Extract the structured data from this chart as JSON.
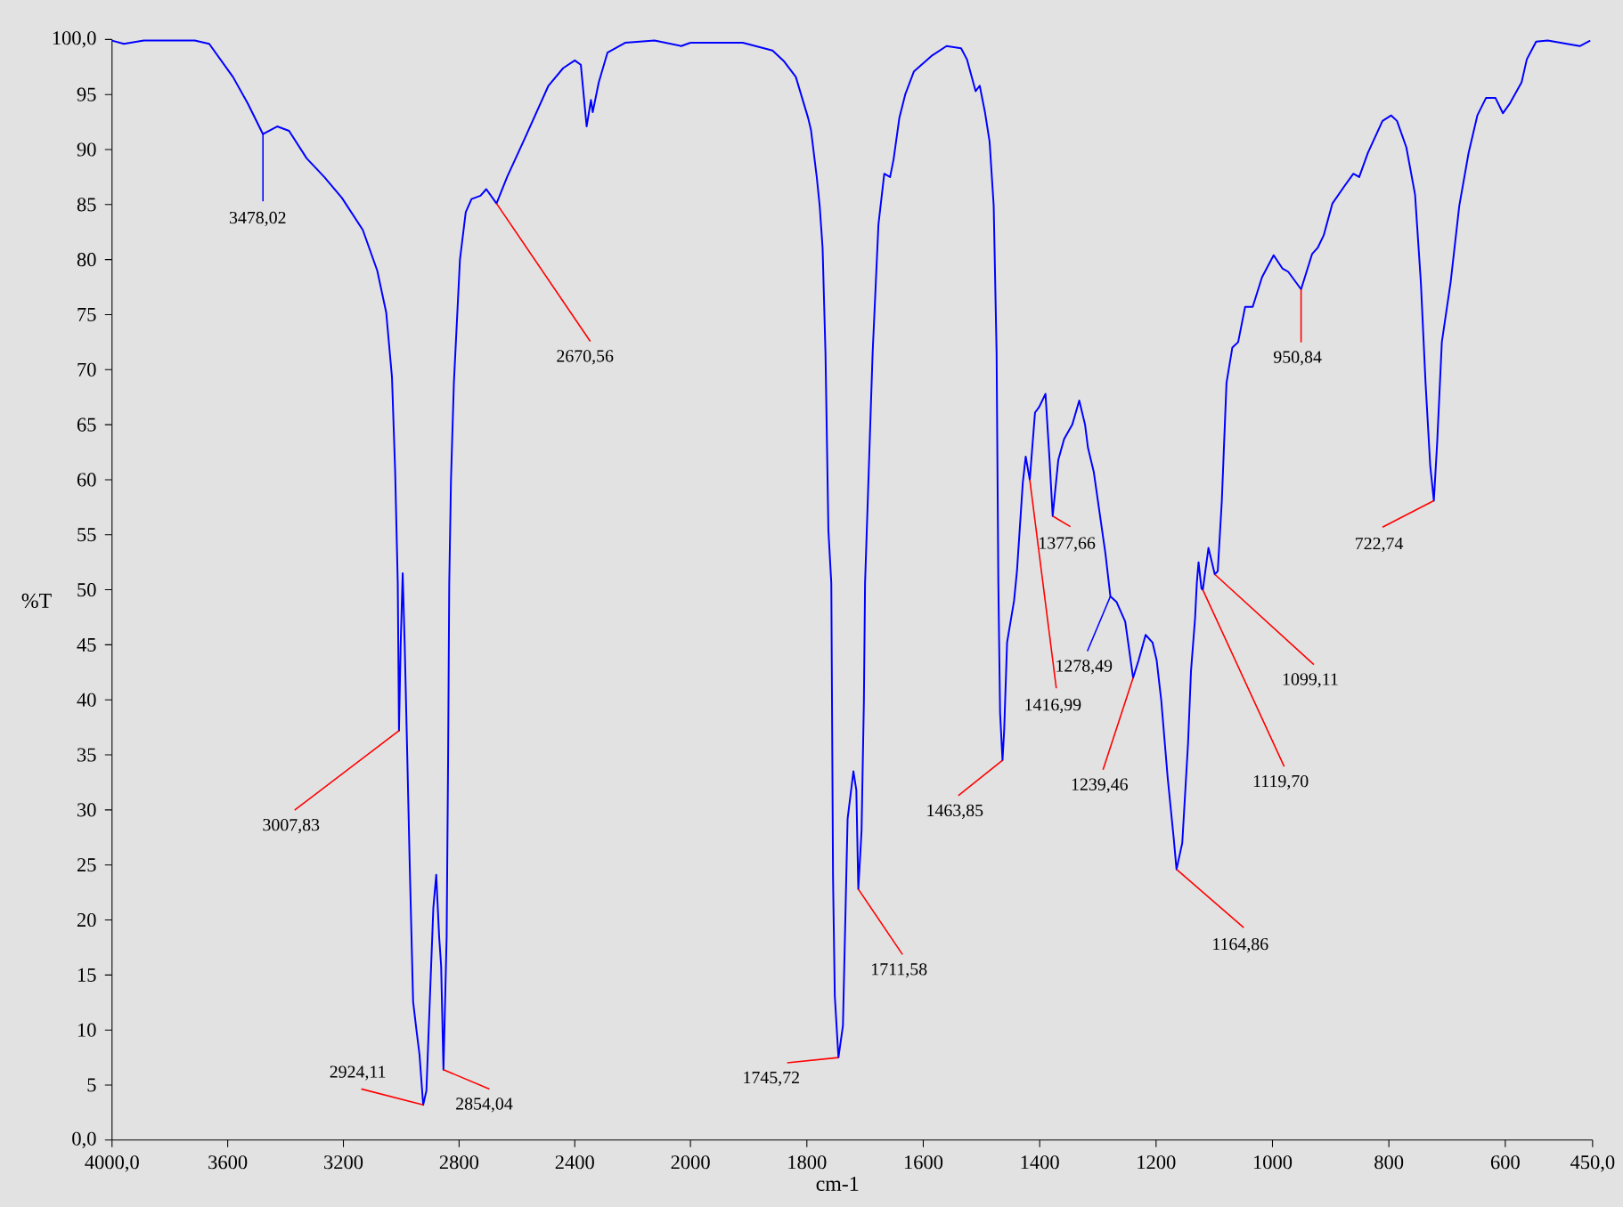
{
  "chart_data": [
    {
      "type": "line",
      "ylabel": "%T",
      "xlim": [
        4000,
        2000
      ],
      "ylim": [
        0,
        100
      ],
      "xticks": [
        {
          "value": 4000,
          "label": "4000,0"
        },
        3600,
        3200,
        2800,
        2400,
        2000
      ],
      "yticks": [
        {
          "value": 0,
          "label": "0,0"
        },
        5,
        10,
        15,
        20,
        25,
        30,
        35,
        40,
        45,
        50,
        55,
        60,
        65,
        70,
        75,
        80,
        85,
        90,
        95,
        {
          "value": 100,
          "label": "100,0"
        }
      ],
      "color": "#0000ff",
      "x": [
        4000,
        3959,
        3890,
        3714,
        3664,
        3582,
        3531,
        3478.02,
        3429,
        3388,
        3327,
        3266,
        3205,
        3133,
        3083,
        3052,
        3032,
        3021,
        3012,
        3007.83,
        3002,
        2995,
        2988,
        2978,
        2971,
        2965,
        2959,
        2947,
        2937,
        2924.11,
        2913,
        2899,
        2889,
        2879,
        2869,
        2862,
        2854.04,
        2843,
        2838,
        2834,
        2828,
        2818,
        2797,
        2777,
        2757,
        2726,
        2706,
        2670.56,
        2634,
        2573,
        2491,
        2440,
        2400,
        2379,
        2359,
        2344,
        2338,
        2317,
        2287,
        2226,
        2124,
        2032,
        2000
      ],
      "values": [
        99.9,
        99.6,
        99.9,
        99.9,
        99.6,
        96.6,
        94.2,
        91.4,
        92.1,
        91.7,
        89.2,
        87.5,
        85.6,
        82.7,
        79.0,
        75.2,
        69.3,
        60.7,
        50.6,
        37.2,
        45.0,
        51.5,
        45.0,
        33.5,
        25.4,
        19.0,
        12.6,
        9.9,
        7.8,
        3.2,
        4.5,
        14.2,
        21.1,
        24.1,
        18.5,
        15.8,
        6.4,
        18.5,
        34.5,
        50.6,
        60.0,
        68.8,
        80.0,
        84.3,
        85.5,
        85.8,
        86.4,
        85.1,
        87.5,
        91.0,
        95.8,
        97.4,
        98.1,
        97.7,
        92.1,
        94.5,
        93.4,
        96.1,
        98.8,
        99.7,
        99.9,
        99.4,
        99.7
      ],
      "annotations": [
        {
          "text": "3478,02",
          "x": 3478.02,
          "y": 91.4
        },
        {
          "text": "2670,56",
          "x": 2670.56,
          "y": 85.1
        },
        {
          "text": "3007,83",
          "x": 3007.83,
          "y": 37.2
        },
        {
          "text": "2924,11",
          "x": 2924.11,
          "y": 3.2
        },
        {
          "text": "2854,04",
          "x": 2854.04,
          "y": 6.4
        }
      ]
    },
    {
      "type": "line",
      "xlabel": "cm-1",
      "xlim": [
        2000,
        450
      ],
      "ylim": [
        0,
        100
      ],
      "tick_labels": "x",
      "xticks": [
        1800,
        1600,
        1400,
        1200,
        1000,
        800,
        600,
        {
          "value": 450,
          "label": "450,0"
        }
      ],
      "color": "#0000ff",
      "x": [
        2000,
        1910,
        1859,
        1839,
        1819,
        1798,
        1793,
        1783,
        1778,
        1773,
        1768,
        1763,
        1758,
        1755,
        1752,
        1745.72,
        1738,
        1730,
        1720,
        1715,
        1711.58,
        1706,
        1702,
        1700,
        1687,
        1677,
        1667,
        1657,
        1651,
        1641,
        1631,
        1616,
        1586,
        1560,
        1535,
        1525,
        1510,
        1503,
        1494,
        1486,
        1479,
        1474,
        1471,
        1468,
        1463.85,
        1461,
        1456,
        1444,
        1439,
        1429,
        1424,
        1416.99,
        1408,
        1401,
        1390,
        1383,
        1377.66,
        1368,
        1358,
        1344,
        1332,
        1322,
        1317,
        1307,
        1297,
        1287,
        1278.49,
        1268,
        1253,
        1239.46,
        1230,
        1218,
        1206,
        1199,
        1191,
        1180,
        1170,
        1164.86,
        1155,
        1145,
        1140,
        1133,
        1130,
        1127,
        1122,
        1119.7,
        1110,
        1099.11,
        1094,
        1087,
        1079,
        1069,
        1059,
        1047,
        1034,
        1018,
        998,
        983,
        973,
        950.84,
        932,
        922,
        912,
        897,
        876,
        861,
        851,
        836,
        811,
        796,
        786,
        770,
        755,
        745,
        737,
        729,
        722.74,
        717,
        709,
        694,
        679,
        663,
        648,
        633,
        617,
        604,
        592,
        572,
        563,
        547,
        527,
        472,
        454
      ],
      "values": [
        99.7,
        99.7,
        99.0,
        98.0,
        96.6,
        92.9,
        91.8,
        87.5,
        84.9,
        81.1,
        71.5,
        55.4,
        50.6,
        23.8,
        13.1,
        7.5,
        10.4,
        29.2,
        33.5,
        31.8,
        22.8,
        28.1,
        39.9,
        50.6,
        71.5,
        83.2,
        87.8,
        87.5,
        89.1,
        92.9,
        95.0,
        97.1,
        98.5,
        99.4,
        99.2,
        98.2,
        95.3,
        95.8,
        93.4,
        90.7,
        84.9,
        71.5,
        50.6,
        38.8,
        34.5,
        37.2,
        45.2,
        49.0,
        51.7,
        59.7,
        62.1,
        60.0,
        66.1,
        66.6,
        67.8,
        61.8,
        56.7,
        61.8,
        63.7,
        65.0,
        67.2,
        65.0,
        62.9,
        60.7,
        57.0,
        53.3,
        49.4,
        48.9,
        47.1,
        42.0,
        43.6,
        45.9,
        45.2,
        43.6,
        39.9,
        32.9,
        27.6,
        24.6,
        27.0,
        36.1,
        42.6,
        47.4,
        50.6,
        52.5,
        50.1,
        50.0,
        53.8,
        51.4,
        51.7,
        58.1,
        68.8,
        72.0,
        72.5,
        75.7,
        75.7,
        78.4,
        80.4,
        79.2,
        78.9,
        77.3,
        80.5,
        81.1,
        82.2,
        85.1,
        86.7,
        87.8,
        87.5,
        89.7,
        92.6,
        93.1,
        92.6,
        90.2,
        85.9,
        77.9,
        68.8,
        61.3,
        58.1,
        63.4,
        72.5,
        77.9,
        84.9,
        89.7,
        93.1,
        94.7,
        94.7,
        93.3,
        94.2,
        96.1,
        98.2,
        99.8,
        99.9,
        99.4,
        99.9
      ],
      "annotations": [
        {
          "text": "1745,72",
          "x": 1745.72,
          "y": 7.5
        },
        {
          "text": "1711,58",
          "x": 1711.58,
          "y": 22.8
        },
        {
          "text": "1463,85",
          "x": 1463.85,
          "y": 34.5
        },
        {
          "text": "1416,99",
          "x": 1416.99,
          "y": 60.0
        },
        {
          "text": "1377,66",
          "x": 1377.66,
          "y": 56.7
        },
        {
          "text": "1278,49",
          "x": 1278.49,
          "y": 49.4
        },
        {
          "text": "1239,46",
          "x": 1239.46,
          "y": 42.0
        },
        {
          "text": "1164,86",
          "x": 1164.86,
          "y": 24.6
        },
        {
          "text": "1119,70",
          "x": 1119.7,
          "y": 50.0
        },
        {
          "text": "1099,11",
          "x": 1099.11,
          "y": 51.4
        },
        {
          "text": "950,84",
          "x": 950.84,
          "y": 77.3
        },
        {
          "text": "722,74",
          "x": 722.74,
          "y": 58.1
        }
      ]
    }
  ]
}
